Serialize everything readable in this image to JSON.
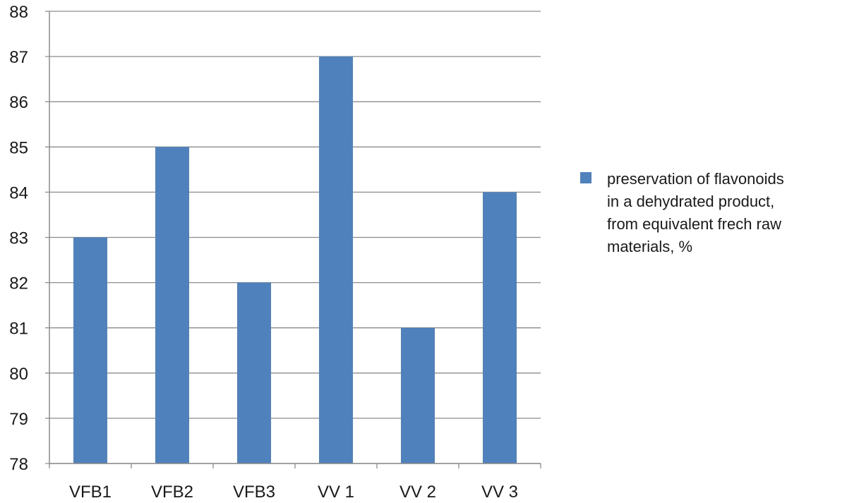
{
  "chart_data": {
    "type": "bar",
    "categories": [
      "VFB1",
      "VFB2",
      "VFB3",
      "VV 1",
      "VV 2",
      "VV 3"
    ],
    "series": [
      {
        "name": "preservation of flavonoids\nin a dehydrated product,\nfrom equivalent frech raw\nmaterials, %",
        "values": [
          83,
          85,
          82,
          87,
          81,
          84
        ],
        "color": "#4f81bd"
      }
    ],
    "title": "",
    "xlabel": "",
    "ylabel": "",
    "ylim": [
      78,
      88
    ],
    "yticks": [
      "78",
      "79",
      "80",
      "81",
      "82",
      "83",
      "84",
      "85",
      "86",
      "87",
      "88"
    ],
    "grid": true,
    "legend_position": "right"
  }
}
